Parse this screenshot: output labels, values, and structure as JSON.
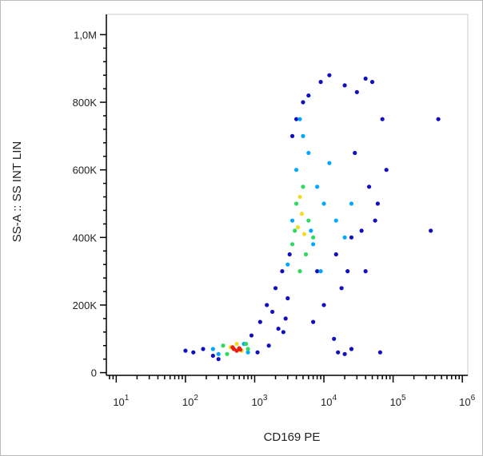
{
  "chart_data": {
    "type": "scatter",
    "xlabel": "CD169 PE",
    "ylabel": "SS-A :: SS INT LIN",
    "xscale": "log",
    "xlim": [
      7.2,
      1200000
    ],
    "xticks": [
      {
        "value": 10,
        "label": "10",
        "power": "1"
      },
      {
        "value": 100,
        "label": "10",
        "power": "2"
      },
      {
        "value": 1000,
        "label": "10",
        "power": "3"
      },
      {
        "value": 10000,
        "label": "10",
        "power": "4"
      },
      {
        "value": 100000,
        "label": "10",
        "power": "5"
      },
      {
        "value": 1000000,
        "label": "10",
        "power": "6"
      }
    ],
    "ylim": [
      -8000,
      1060000
    ],
    "yticks": [
      0,
      {
        "value": 200000,
        "label": "200K"
      },
      {
        "value": 400000,
        "label": "400K"
      },
      {
        "value": 600000,
        "label": "600K"
      },
      {
        "value": 800000,
        "label": "800K"
      },
      {
        "value": 1000000,
        "label": "1,0M"
      }
    ],
    "series": [
      {
        "color": "#1010c0",
        "x": [
          250,
          180,
          300,
          900,
          1200,
          1500,
          2000,
          1800,
          2500,
          3000,
          2200,
          2800,
          3500,
          6000,
          9000,
          12000,
          20000,
          30000,
          40000,
          50000,
          70000,
          80000,
          60000,
          25000,
          15000,
          8000,
          5000,
          4000,
          18000,
          22000,
          35000,
          45000,
          28000,
          55000,
          10000,
          14000,
          7000,
          3200,
          2600,
          1600,
          130,
          100,
          1100,
          16000,
          20000,
          25000,
          450000,
          350000,
          65000,
          40000
        ],
        "values": [
          50000,
          70000,
          40000,
          110000,
          150000,
          200000,
          250000,
          180000,
          300000,
          220000,
          130000,
          160000,
          700000,
          820000,
          860000,
          880000,
          850000,
          830000,
          870000,
          860000,
          750000,
          600000,
          500000,
          400000,
          350000,
          300000,
          800000,
          750000,
          250000,
          300000,
          420000,
          550000,
          650000,
          450000,
          200000,
          100000,
          150000,
          350000,
          120000,
          80000,
          60000,
          65000,
          60000,
          60000,
          55000,
          70000,
          750000,
          420000,
          60000,
          300000
        ]
      },
      {
        "color": "#00a8ff",
        "x": [
          3000,
          4000,
          6000,
          8000,
          10000,
          15000,
          20000,
          5000,
          7000,
          12000,
          3500,
          9000,
          25000,
          4500,
          6500,
          700,
          300,
          800,
          250
        ],
        "values": [
          320000,
          600000,
          650000,
          550000,
          500000,
          450000,
          400000,
          700000,
          380000,
          620000,
          450000,
          300000,
          500000,
          750000,
          420000,
          85000,
          55000,
          60000,
          70000
        ]
      },
      {
        "color": "#30d860",
        "x": [
          3500,
          4000,
          5000,
          6000,
          7000,
          4500,
          5500,
          3800,
          350,
          800,
          400,
          750
        ],
        "values": [
          380000,
          500000,
          550000,
          450000,
          400000,
          300000,
          350000,
          420000,
          80000,
          70000,
          55000,
          85000
        ]
      },
      {
        "color": "#f0dc20",
        "x": [
          4200,
          4800,
          5200,
          4500,
          450,
          650,
          550
        ],
        "values": [
          430000,
          470000,
          410000,
          520000,
          75000,
          65000,
          85000
        ]
      },
      {
        "color": "#e82010",
        "x": [
          500,
          600,
          550,
          480,
          620
        ],
        "values": [
          70000,
          72000,
          65000,
          75000,
          68000
        ]
      }
    ]
  }
}
